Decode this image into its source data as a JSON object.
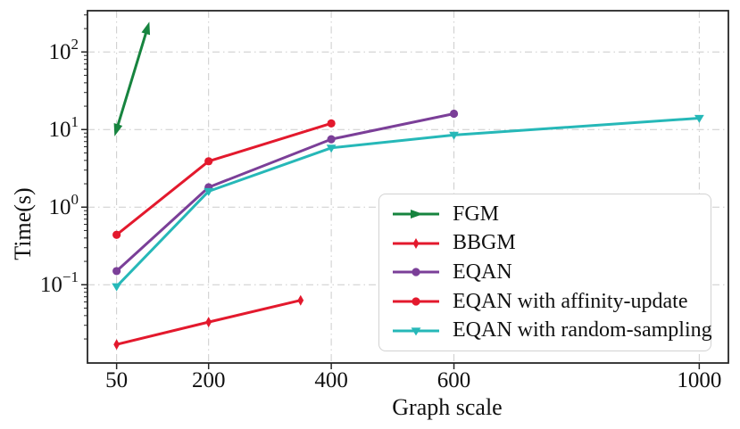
{
  "chart_data": {
    "type": "line",
    "title": "",
    "xlabel": "Graph scale",
    "ylabel": "Time(s)",
    "x_scale": "linear",
    "y_scale": "log",
    "x_ticks": [
      50,
      200,
      400,
      600,
      1000
    ],
    "y_ticks": [
      100,
      10,
      1,
      0.1
    ],
    "y_tick_exponents": [
      2,
      1,
      0,
      -1
    ],
    "xlim": [
      2.5,
      1047.5
    ],
    "ylim": [
      0.0098,
      340
    ],
    "grid": true,
    "grid_style": "dash-dot",
    "legend_position": "lower-right-inside",
    "axis_color": "#262626",
    "grid_color": "#cccccc",
    "text_color": "#111111",
    "series": [
      {
        "name": "FGM",
        "color": "#17843f",
        "marker": "arrow",
        "x": [
          50,
          100
        ],
        "y": [
          10,
          200
        ]
      },
      {
        "name": "BBGM",
        "color": "#e3192d",
        "marker": "thin-diamond",
        "x": [
          50,
          200,
          350
        ],
        "y": [
          0.017,
          0.033,
          0.063
        ]
      },
      {
        "name": "EQAN",
        "color": "#7b3f98",
        "marker": "circle",
        "x": [
          50,
          200,
          400,
          600
        ],
        "y": [
          0.15,
          1.8,
          7.5,
          16
        ]
      },
      {
        "name": "EQAN with affinity-update",
        "color": "#e3192d",
        "marker": "circle",
        "x": [
          50,
          200,
          400
        ],
        "y": [
          0.44,
          3.9,
          12
        ]
      },
      {
        "name": "EQAN with random-sampling",
        "color": "#26b8b8",
        "marker": "triangle-down",
        "x": [
          50,
          200,
          400,
          600,
          1000
        ],
        "y": [
          0.095,
          1.6,
          5.8,
          8.5,
          14
        ]
      }
    ]
  }
}
